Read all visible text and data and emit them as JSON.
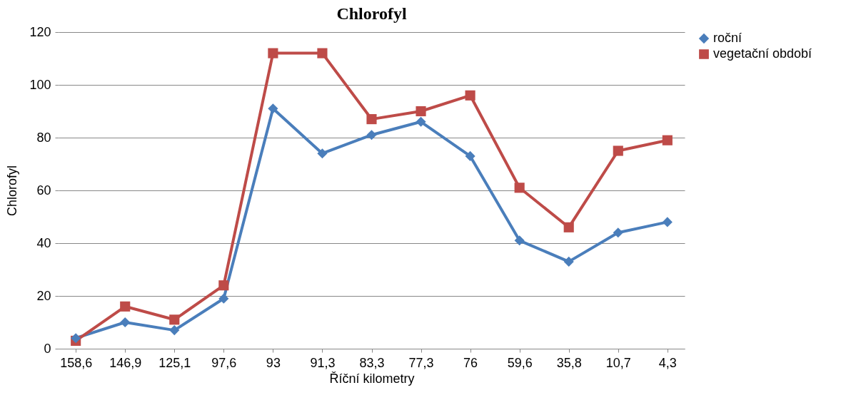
{
  "chart_data": {
    "type": "line",
    "title": "Chlorofyl",
    "xlabel": "Říční kilometry",
    "ylabel": "Chlorofyl",
    "categories": [
      "158,6",
      "146,9",
      "125,1",
      "97,6",
      "93",
      "91,3",
      "83,3",
      "77,3",
      "76",
      "59,6",
      "35,8",
      "10,7",
      "4,3"
    ],
    "series": [
      {
        "name": "roční",
        "color": "#4a7ebb",
        "marker": "diamond",
        "values": [
          4,
          10,
          7,
          19,
          91,
          74,
          81,
          86,
          73,
          41,
          33,
          44,
          48
        ]
      },
      {
        "name": "vegetační období",
        "color": "#be4b48",
        "marker": "square",
        "values": [
          3,
          16,
          11,
          24,
          112,
          112,
          87,
          90,
          96,
          61,
          46,
          75,
          79
        ]
      }
    ],
    "ylim": [
      0,
      120
    ],
    "yticks": [
      0,
      20,
      40,
      60,
      80,
      100,
      120
    ],
    "grid": "y",
    "legend": "right"
  }
}
